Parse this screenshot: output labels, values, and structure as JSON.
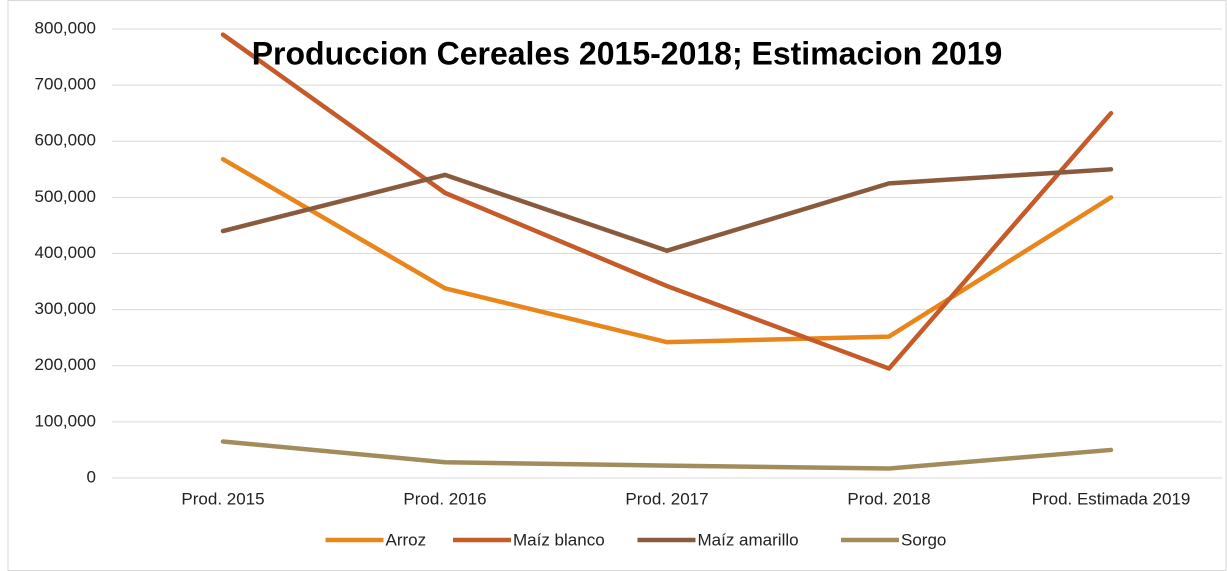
{
  "chart_data": {
    "type": "line",
    "title": "Produccion Cereales 2015-2018; Estimacion 2019",
    "categories": [
      "Prod. 2015",
      "Prod. 2016",
      "Prod. 2017",
      "Prod. 2018",
      "Prod. Estimada 2019"
    ],
    "series": [
      {
        "name": "Arroz",
        "color": "#e8861c",
        "values": [
          568000,
          338000,
          242000,
          252000,
          500000
        ]
      },
      {
        "name": "Maíz blanco",
        "color": "#c65a28",
        "values": [
          790000,
          508000,
          342000,
          195000,
          650000
        ]
      },
      {
        "name": "Maíz amarillo",
        "color": "#8a5a3e",
        "values": [
          440000,
          540000,
          405000,
          525000,
          550000
        ]
      },
      {
        "name": "Sorgo",
        "color": "#a38c5c",
        "values": [
          65000,
          28000,
          22000,
          17000,
          50000
        ]
      }
    ],
    "ylim": [
      0,
      800000
    ],
    "yticks": [
      0,
      {
        "value": 100000,
        "label": "100,000"
      },
      {
        "value": 200000,
        "label": "200,000"
      },
      {
        "value": 300000,
        "label": "300,000"
      },
      {
        "value": 400000,
        "label": "400,000"
      },
      {
        "value": 500000,
        "label": "500,000"
      },
      {
        "value": 600000,
        "label": "600,000"
      },
      {
        "value": 700000,
        "label": "700,000"
      },
      {
        "value": 800000,
        "label": "800,000"
      }
    ],
    "grid": true,
    "legend": "bottom"
  }
}
